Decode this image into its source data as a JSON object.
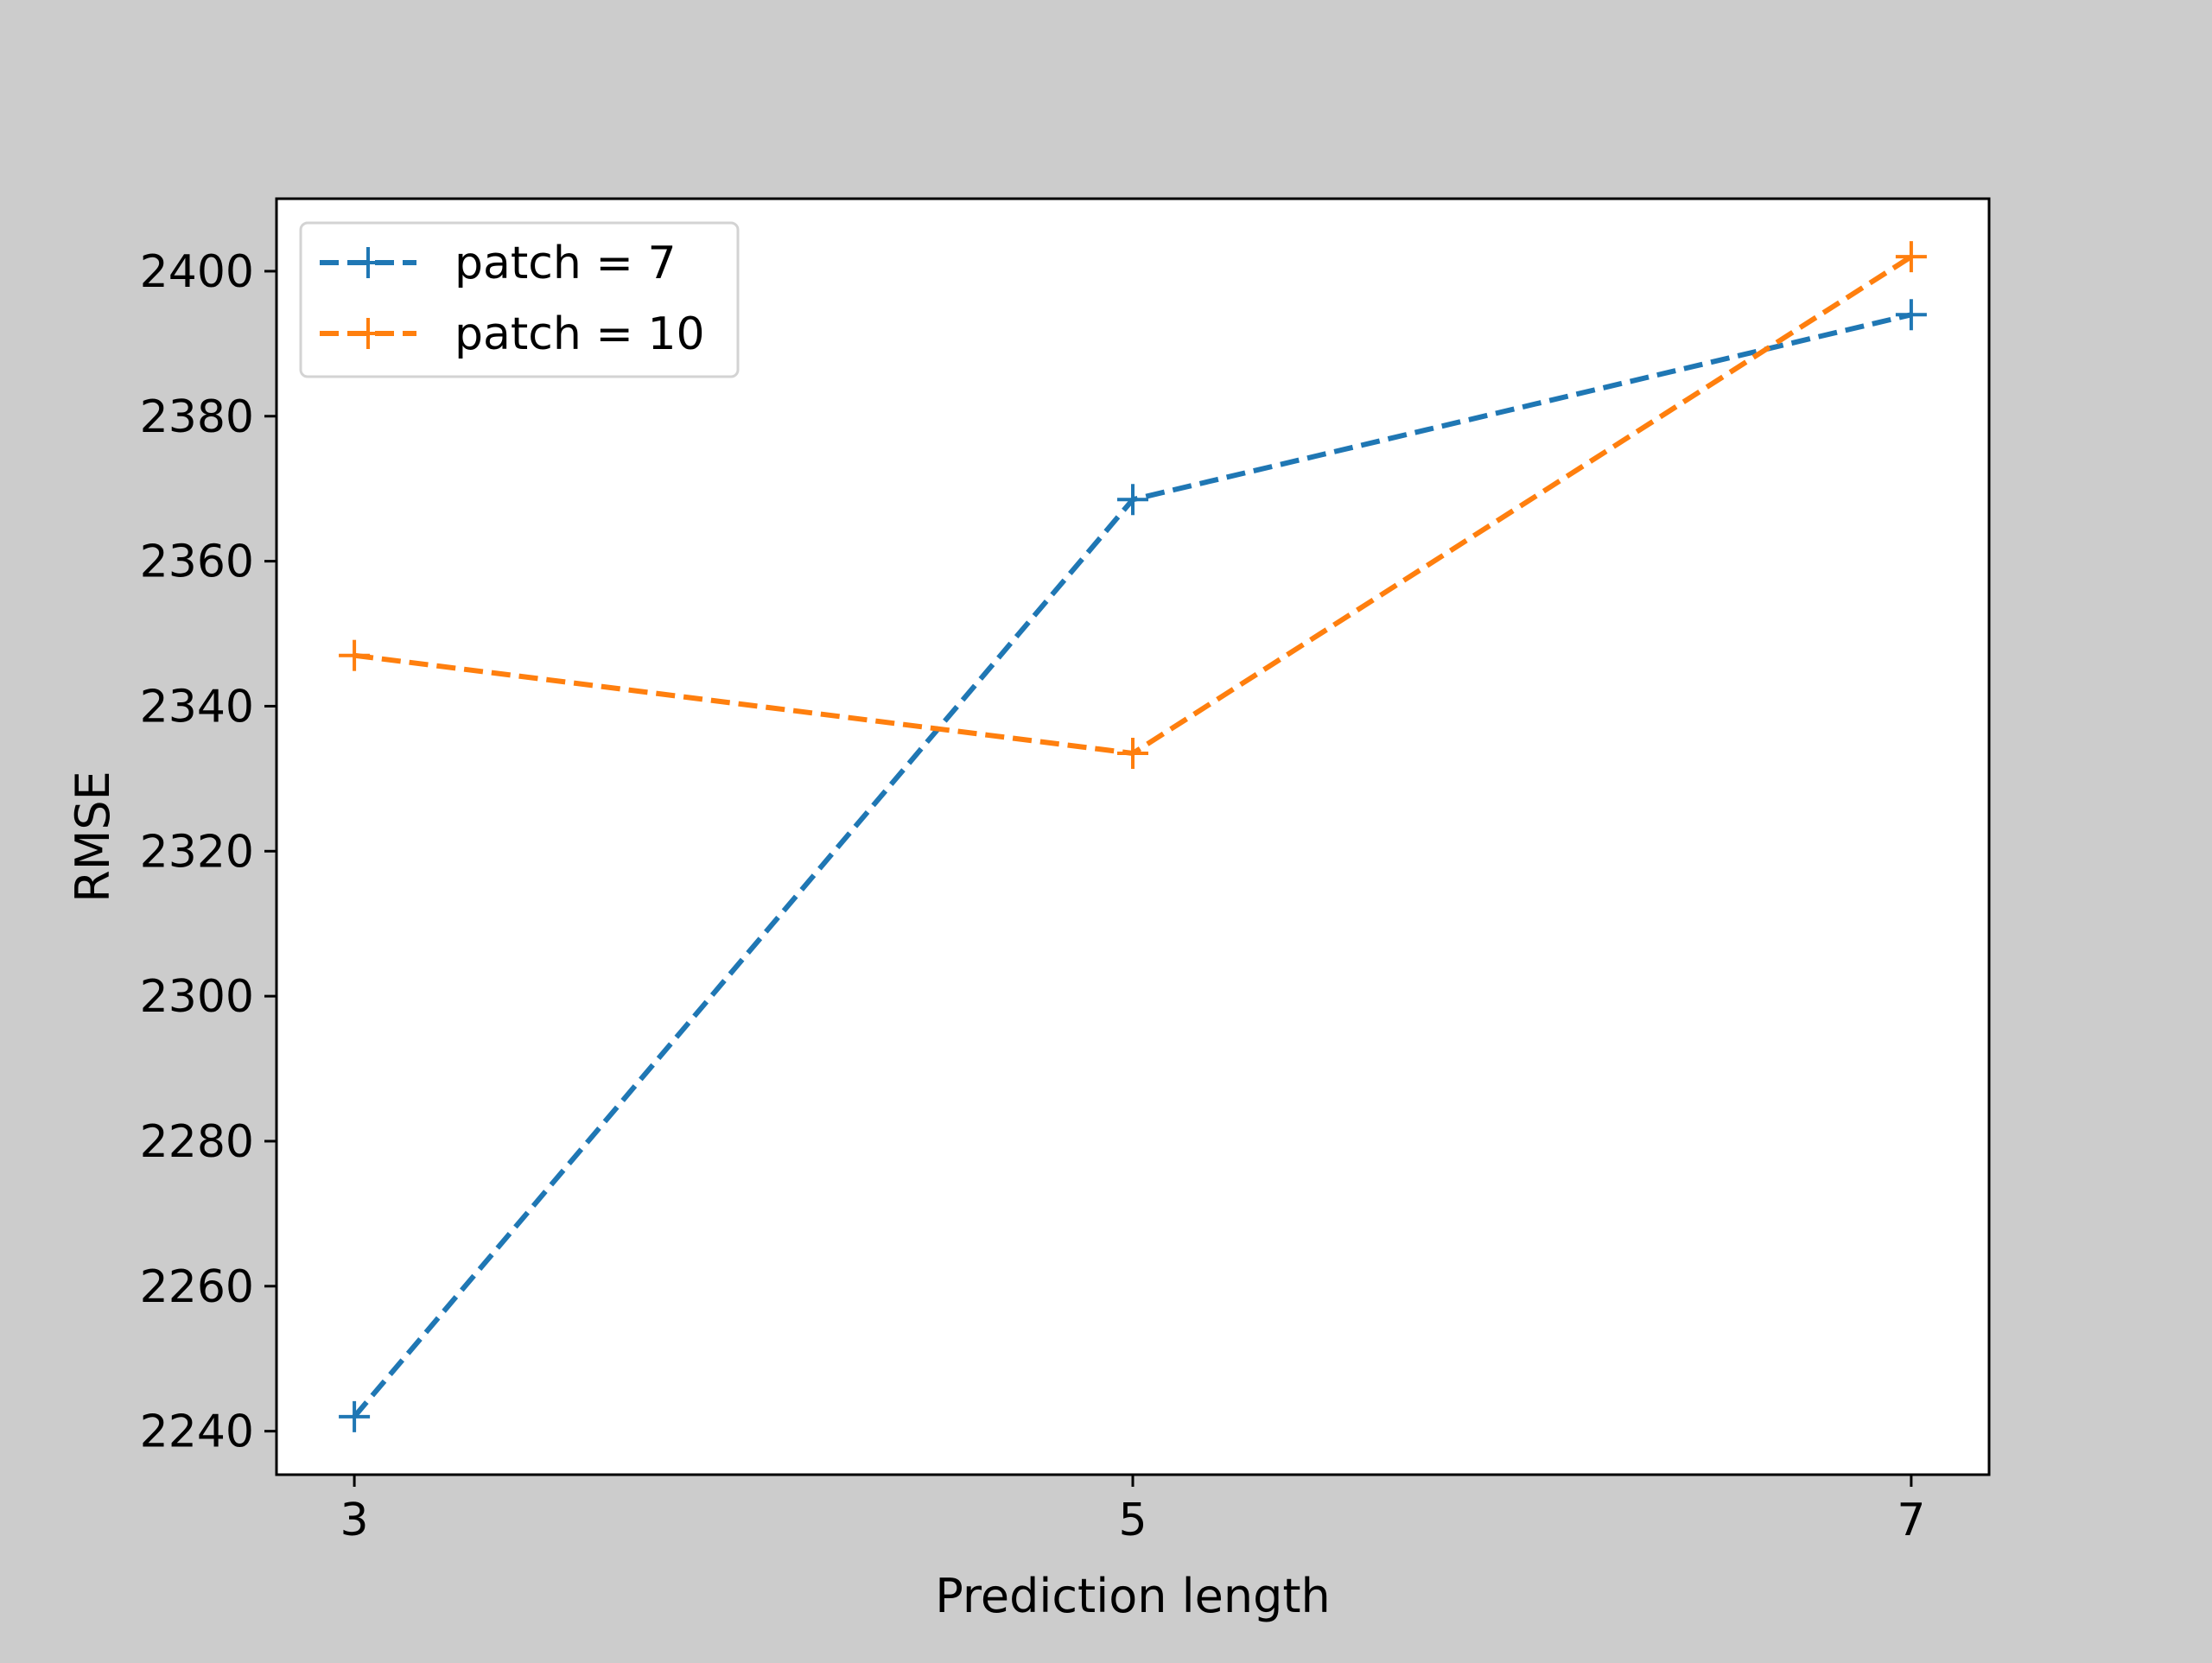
{
  "chart_data": {
    "type": "line",
    "xlabel": "Prediction length",
    "ylabel": "RMSE",
    "x": [
      3,
      5,
      7
    ],
    "xticks": [
      "3",
      "5",
      "7"
    ],
    "xlim": [
      2.8,
      7.2
    ],
    "ylim": [
      2234,
      2410
    ],
    "yticks": [
      2240,
      2260,
      2280,
      2300,
      2320,
      2340,
      2360,
      2380,
      2400
    ],
    "grid": false,
    "legend_position": "top-left",
    "line_style": "dashed",
    "marker": "plus",
    "series": [
      {
        "name": "patch = 7",
        "values": [
          2242,
          2368.5,
          2394
        ],
        "color": "#1f77b4"
      },
      {
        "name": "patch = 10",
        "values": [
          2347,
          2333.5,
          2402
        ],
        "color": "#ff7f0e"
      }
    ]
  }
}
